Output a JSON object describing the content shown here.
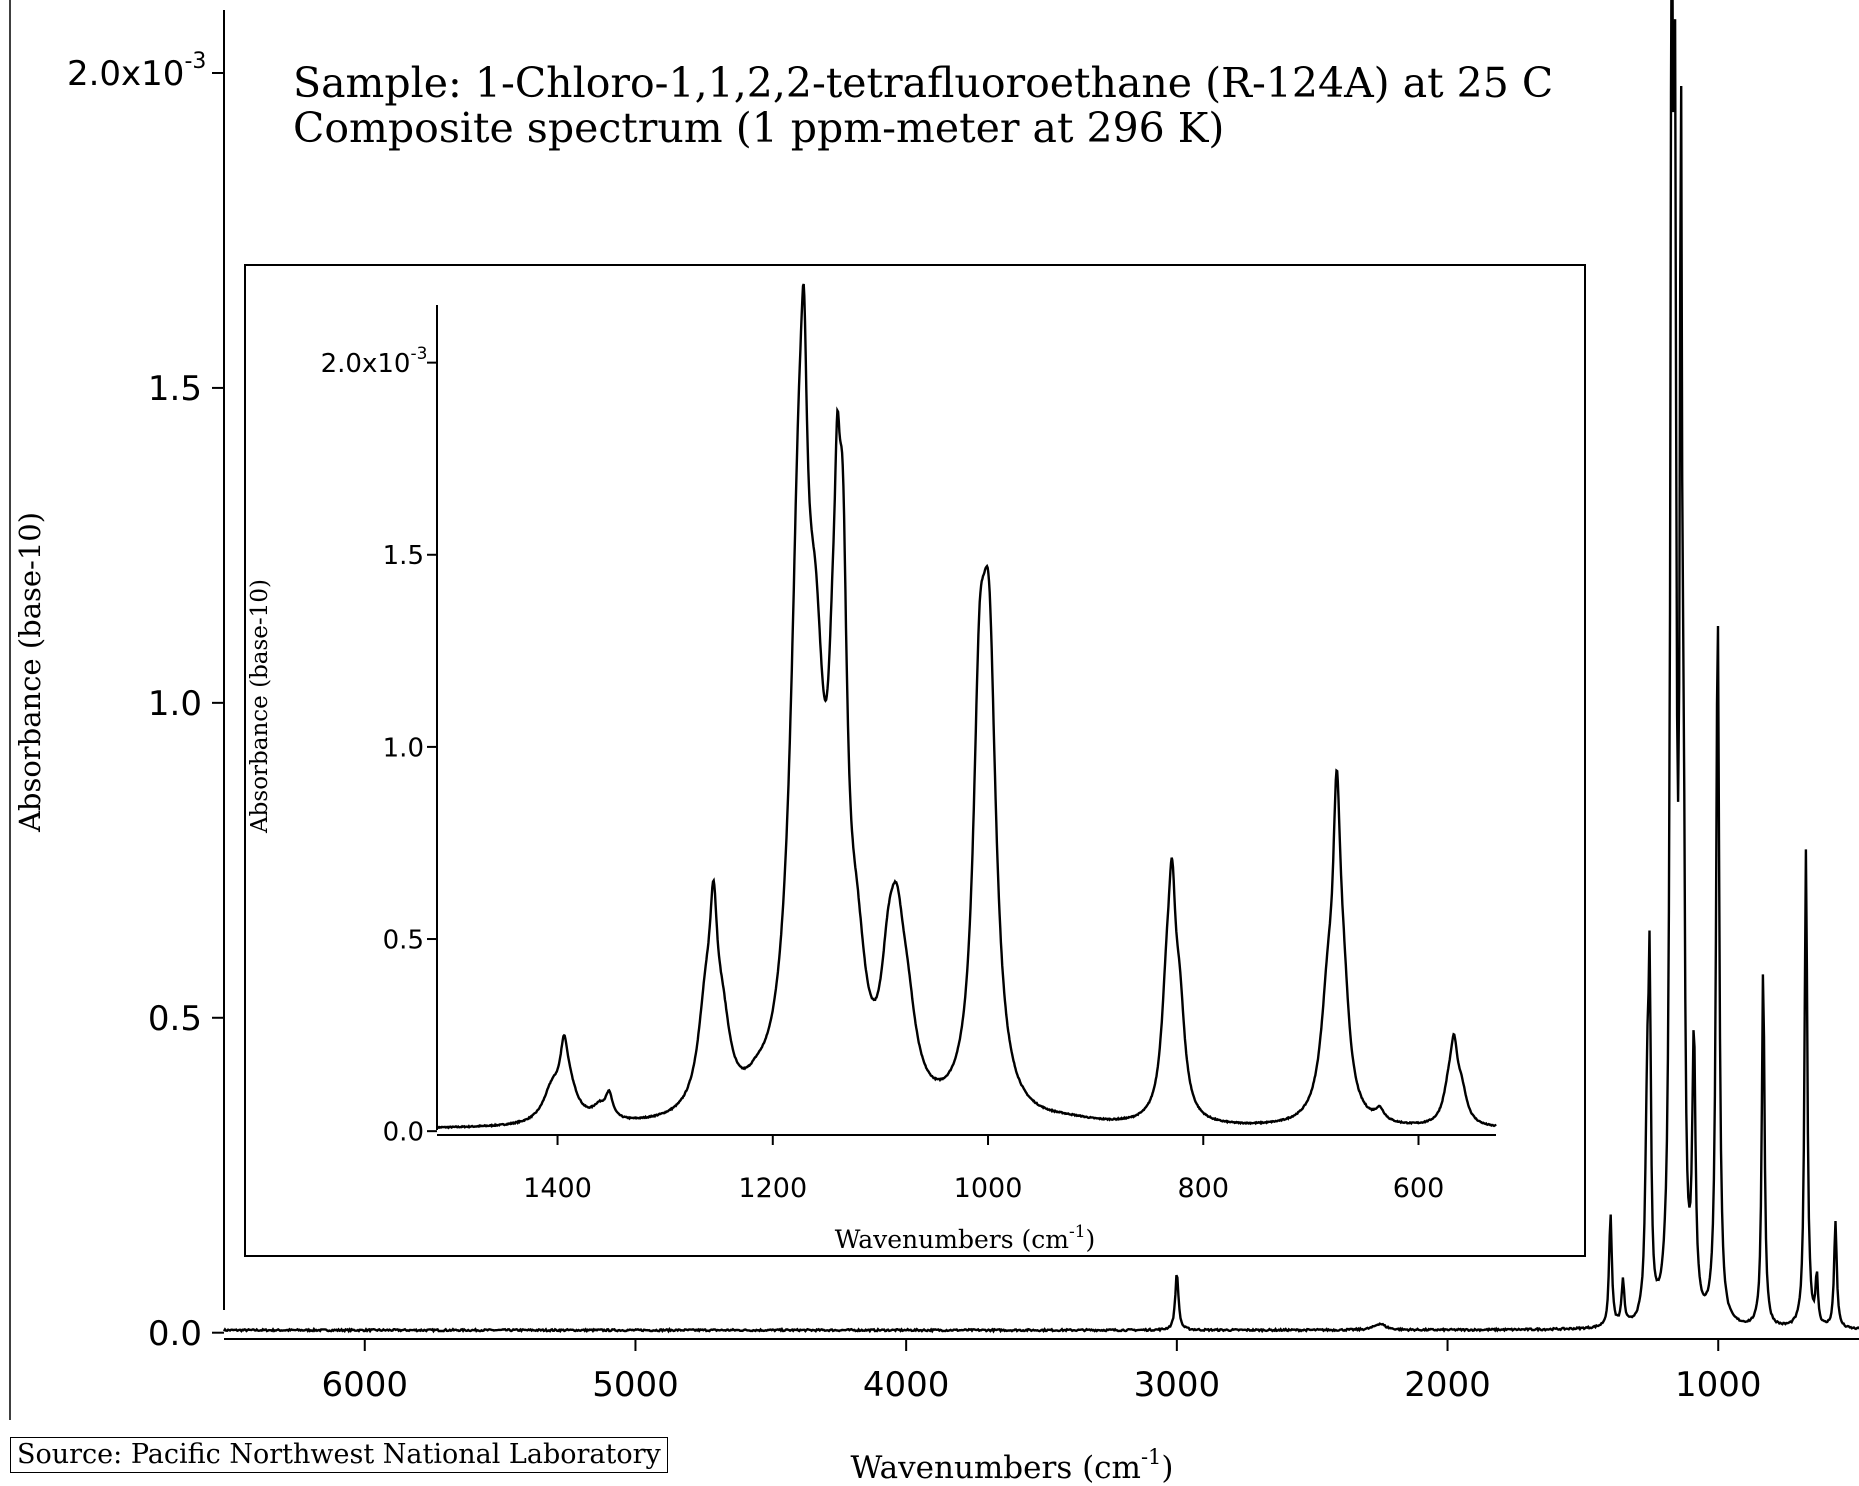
{
  "source": "Source: Pacific Northwest National Laboratory",
  "chart_data": [
    {
      "id": "main",
      "type": "line",
      "title": "Sample: 1-Chloro-1,1,2,2-tetrafluoroethane (R-124A) at 25 C",
      "subtitle": "Composite spectrum (1 ppm-meter at 296 K)",
      "xlabel": "Wavenumbers (cm-1)",
      "xlabel_main": "Wavenumbers (cm",
      "xlabel_sup": "-1",
      "xlabel_end": ")",
      "ylabel": "Absorbance (base-10)",
      "xlim": [
        6520,
        480
      ],
      "ylim": [
        -1e-05,
        0.0021
      ],
      "grid": false,
      "line_color": "#000000",
      "x_ticks": [
        6000,
        5000,
        4000,
        3000,
        2000,
        1000
      ],
      "x_tick_labels": [
        "6000",
        "5000",
        "4000",
        "3000",
        "2000",
        "1000"
      ],
      "y_ticks": [
        0.0,
        0.0005,
        0.001,
        0.0015,
        0.002
      ],
      "y_tick_labels": [
        "0.0",
        "0.5",
        "1.0",
        "1.5",
        "2.0x10"
      ],
      "y_tick_exponent": "-3",
      "peaks": [
        {
          "x": 3000,
          "y": 9.2e-05,
          "w": 7
        },
        {
          "x": 2250,
          "y": 1e-05,
          "w": 25
        },
        {
          "x": 1398,
          "y": 0.00018,
          "w": 6
        },
        {
          "x": 1352,
          "y": 7e-05,
          "w": 6
        },
        {
          "x": 1262,
          "y": 0.00035,
          "w": 8
        },
        {
          "x": 1253,
          "y": 0.00045,
          "w": 5
        },
        {
          "x": 1172,
          "y": 0.002,
          "w": 6
        },
        {
          "x": 1160,
          "y": 0.0016,
          "w": 6
        },
        {
          "x": 1138,
          "y": 0.0017,
          "w": 5
        },
        {
          "x": 1128,
          "y": 0.0006,
          "w": 6
        },
        {
          "x": 1090,
          "y": 0.00043,
          "w": 7
        },
        {
          "x": 1002,
          "y": 0.00113,
          "w": 7
        },
        {
          "x": 834,
          "y": 0.00057,
          "w": 6
        },
        {
          "x": 676,
          "y": 0.00076,
          "w": 6
        },
        {
          "x": 636,
          "y": 8e-05,
          "w": 5
        },
        {
          "x": 567,
          "y": 0.00017,
          "w": 6
        }
      ]
    },
    {
      "id": "inset",
      "type": "line",
      "xlabel": "Wavenumbers (cm-1)",
      "xlabel_main": "Wavenumbers (cm",
      "xlabel_sup": "-1",
      "xlabel_end": ")",
      "ylabel": "Absorbance (base-10)",
      "xlim": [
        1512,
        528
      ],
      "ylim": [
        -1e-05,
        0.00215
      ],
      "grid": false,
      "line_color": "#000000",
      "x_ticks": [
        1400,
        1200,
        1000,
        800,
        600
      ],
      "x_tick_labels": [
        "1400",
        "1200",
        "1000",
        "800",
        "600"
      ],
      "y_ticks": [
        0.0,
        0.0005,
        0.001,
        0.0015,
        0.002
      ],
      "y_tick_labels": [
        "0.0",
        "0.5",
        "1.0",
        "1.5",
        "2.0x10"
      ],
      "y_tick_exponent": "-3",
      "peaks": [
        {
          "x": 1405,
          "y": 8e-05,
          "w": 10
        },
        {
          "x": 1394,
          "y": 0.00012,
          "w": 4
        },
        {
          "x": 1390,
          "y": 9e-05,
          "w": 10
        },
        {
          "x": 1361,
          "y": 3.5e-05,
          "w": 8
        },
        {
          "x": 1352,
          "y": 6e-05,
          "w": 4
        },
        {
          "x": 1262,
          "y": 0.00026,
          "w": 9
        },
        {
          "x": 1255,
          "y": 0.00033,
          "w": 4
        },
        {
          "x": 1247,
          "y": 0.0002,
          "w": 9
        },
        {
          "x": 1215,
          "y": 3e-05,
          "w": 12
        },
        {
          "x": 1175,
          "y": 0.0015,
          "w": 10
        },
        {
          "x": 1171,
          "y": 0.00045,
          "w": 3
        },
        {
          "x": 1160,
          "y": 0.0008,
          "w": 10
        },
        {
          "x": 1144,
          "y": 0.0006,
          "w": 6
        },
        {
          "x": 1140,
          "y": 0.00055,
          "w": 3
        },
        {
          "x": 1135,
          "y": 0.00105,
          "w": 5
        },
        {
          "x": 1122,
          "y": 0.0003,
          "w": 10
        },
        {
          "x": 1093,
          "y": 0.00022,
          "w": 8
        },
        {
          "x": 1085,
          "y": 0.00035,
          "w": 9
        },
        {
          "x": 1075,
          "y": 0.00018,
          "w": 10
        },
        {
          "x": 1008,
          "y": 0.00085,
          "w": 7
        },
        {
          "x": 999,
          "y": 0.00108,
          "w": 8
        },
        {
          "x": 925,
          "y": 1e-05,
          "w": 30
        },
        {
          "x": 834,
          "y": 0.00028,
          "w": 6
        },
        {
          "x": 829,
          "y": 0.00042,
          "w": 4
        },
        {
          "x": 822,
          "y": 0.00026,
          "w": 6
        },
        {
          "x": 684,
          "y": 0.0003,
          "w": 8
        },
        {
          "x": 676,
          "y": 0.00062,
          "w": 4
        },
        {
          "x": 670,
          "y": 0.00028,
          "w": 7
        },
        {
          "x": 636,
          "y": 3e-05,
          "w": 5
        },
        {
          "x": 572,
          "y": 8e-05,
          "w": 6
        },
        {
          "x": 567,
          "y": 0.00016,
          "w": 4
        },
        {
          "x": 560,
          "y": 8e-05,
          "w": 6
        }
      ]
    }
  ]
}
